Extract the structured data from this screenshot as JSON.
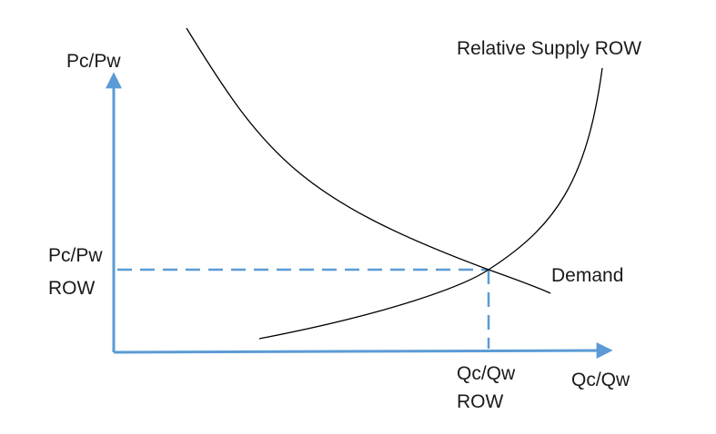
{
  "diagram": {
    "y_axis_label": "Pc/Pw",
    "x_axis_label": "Qc/Qw",
    "supply_label": "Relative Supply ROW",
    "demand_label": "Demand",
    "eq_price_label": [
      "Pc/Pw",
      "ROW"
    ],
    "eq_quantity_label": [
      "Qc/Qw",
      "ROW"
    ]
  },
  "colors": {
    "axis": "#5b9bd5",
    "dashed_guides": "#5b9bd5",
    "curves": "#000000",
    "text": "#1a1a1a"
  }
}
